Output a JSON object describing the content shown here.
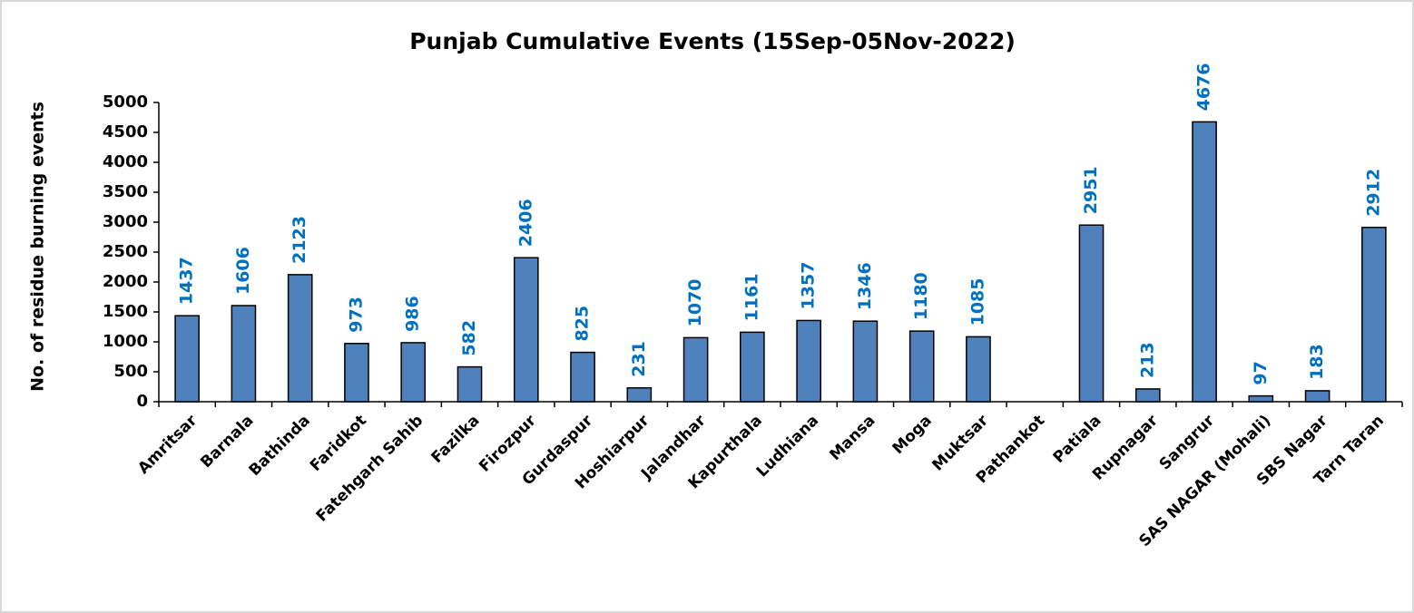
{
  "chart_data": {
    "type": "bar",
    "title": "Punjab Cumulative Events (15Sep-05Nov-2022)",
    "y_label": "No. of residue burning events",
    "categories": [
      "Amritsar",
      "Barnala",
      "Bathinda",
      "Faridkot",
      "Fatehgarh Sahib",
      "Fazilka",
      "Firozpur",
      "Gurdaspur",
      "Hoshiarpur",
      "Jalandhar",
      "Kapurthala",
      "Ludhiana",
      "Mansa",
      "Moga",
      "Muktsar",
      "Pathankot",
      "Patiala",
      "Rupnagar",
      "Sangrur",
      "SAS NAGAR (Mohali)",
      "SBS Nagar",
      "Tarn Taran"
    ],
    "values": [
      1437,
      1606,
      2123,
      973,
      986,
      582,
      2406,
      825,
      231,
      1070,
      1161,
      1357,
      1346,
      1180,
      1085,
      null,
      2951,
      213,
      4676,
      97,
      183,
      2912
    ],
    "color": "#4f81bd",
    "label_color": "#0070c0",
    "ylim": [
      0,
      5000
    ],
    "yticks": [
      0,
      500,
      1000,
      1500,
      2000,
      2500,
      3000,
      3500,
      4000,
      4500,
      5000
    ],
    "grid": false
  }
}
